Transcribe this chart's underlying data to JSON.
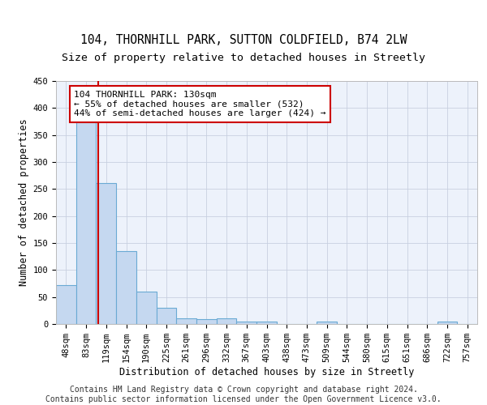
{
  "title1": "104, THORNHILL PARK, SUTTON COLDFIELD, B74 2LW",
  "title2": "Size of property relative to detached houses in Streetly",
  "xlabel": "Distribution of detached houses by size in Streetly",
  "ylabel": "Number of detached properties",
  "categories": [
    "48sqm",
    "83sqm",
    "119sqm",
    "154sqm",
    "190sqm",
    "225sqm",
    "261sqm",
    "296sqm",
    "332sqm",
    "367sqm",
    "403sqm",
    "438sqm",
    "473sqm",
    "509sqm",
    "544sqm",
    "580sqm",
    "615sqm",
    "651sqm",
    "686sqm",
    "722sqm",
    "757sqm"
  ],
  "values": [
    72,
    378,
    261,
    135,
    60,
    30,
    10,
    9,
    10,
    5,
    5,
    0,
    0,
    5,
    0,
    0,
    0,
    0,
    0,
    5,
    0
  ],
  "bar_color": "#c5d8f0",
  "bar_edgecolor": "#6aaad4",
  "vline_x": 1.62,
  "vline_color": "#cc0000",
  "annotation_text": "104 THORNHILL PARK: 130sqm\n← 55% of detached houses are smaller (532)\n44% of semi-detached houses are larger (424) →",
  "annotation_box_color": "#ffffff",
  "annotation_box_edgecolor": "#cc0000",
  "ylim": [
    0,
    450
  ],
  "yticks": [
    0,
    50,
    100,
    150,
    200,
    250,
    300,
    350,
    400,
    450
  ],
  "footer_text": "Contains HM Land Registry data © Crown copyright and database right 2024.\nContains public sector information licensed under the Open Government Licence v3.0.",
  "background_color": "#edf2fb",
  "grid_color": "#c8d0e0",
  "title1_fontsize": 10.5,
  "title2_fontsize": 9.5,
  "axis_label_fontsize": 8.5,
  "tick_fontsize": 7.5,
  "footer_fontsize": 7,
  "annot_fontsize": 8
}
